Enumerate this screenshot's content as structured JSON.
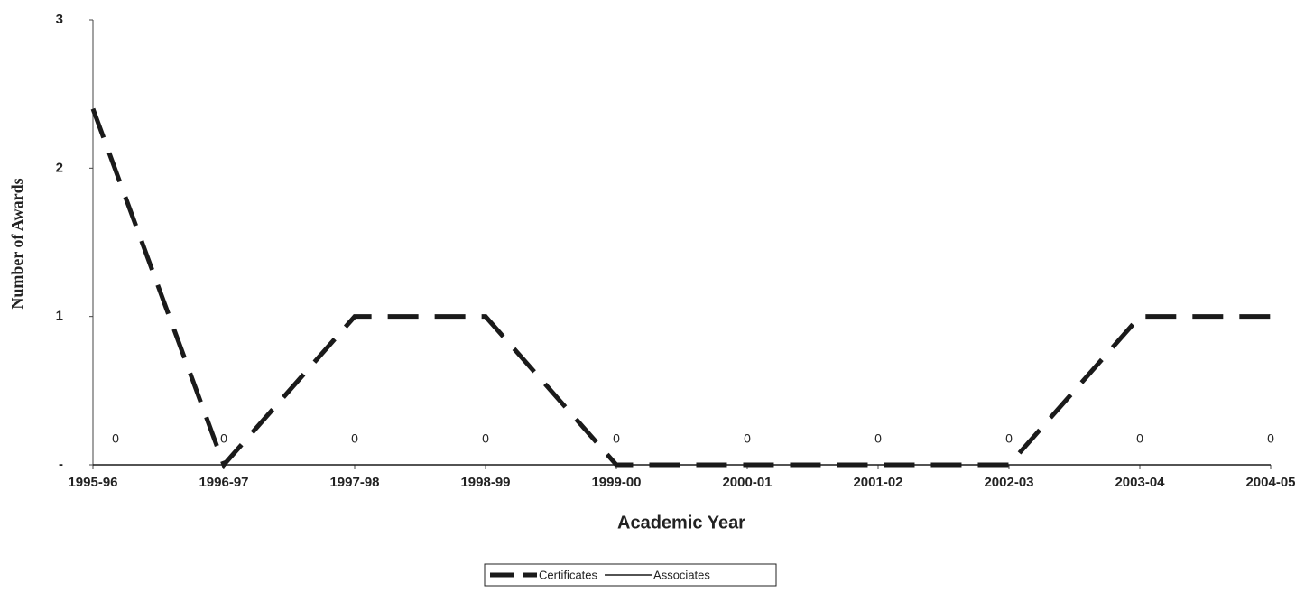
{
  "chart_data": {
    "type": "line",
    "categories": [
      "1995-96",
      "1996-97",
      "1997-98",
      "1998-99",
      "1999-00",
      "2000-01",
      "2001-02",
      "2002-03",
      "2003-04",
      "2004-05"
    ],
    "series": [
      {
        "name": "Certificates",
        "color": "#1a1a1a",
        "style": "dashed",
        "values": [
          2.4,
          0,
          1,
          1,
          0,
          0,
          0,
          0,
          1,
          1
        ]
      },
      {
        "name": "Associates",
        "color": "#1a1a1a",
        "style": "solid",
        "values": [
          0,
          0,
          0,
          0,
          0,
          0,
          0,
          0,
          0,
          0
        ]
      }
    ],
    "data_labels_series": 1,
    "ylim": [
      0,
      3
    ],
    "yticks": [
      {
        "value": 0,
        "label": "-"
      },
      1,
      2,
      3
    ],
    "xlabel": "Academic Year",
    "ylabel": "Number of Awards",
    "legend": "bottom"
  }
}
